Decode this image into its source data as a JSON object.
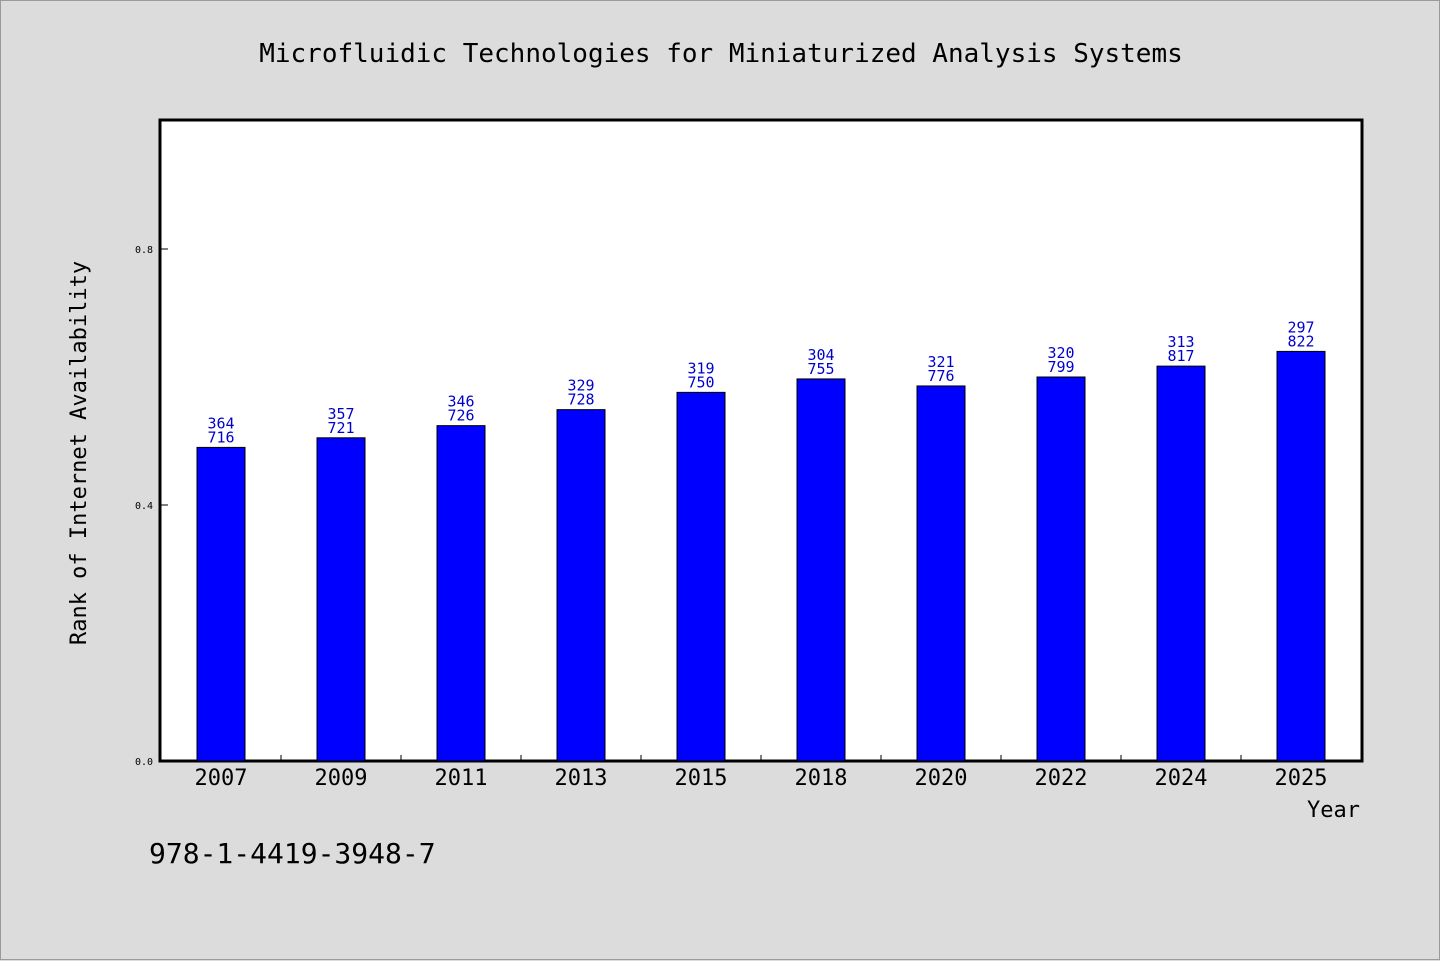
{
  "chart_data": {
    "type": "bar",
    "title": "Microfluidic Technologies for Miniaturized Analysis Systems",
    "xlabel": "Year",
    "ylabel": "Rank of Internet Availability",
    "categories": [
      "2007",
      "2009",
      "2011",
      "2013",
      "2015",
      "2018",
      "2020",
      "2022",
      "2024",
      "2025"
    ],
    "values": [
      0.49,
      0.505,
      0.524,
      0.549,
      0.576,
      0.597,
      0.586,
      0.6,
      0.617,
      0.64
    ],
    "data_labels": [
      [
        "364",
        "716"
      ],
      [
        "357",
        "721"
      ],
      [
        "346",
        "726"
      ],
      [
        "329",
        "728"
      ],
      [
        "319",
        "750"
      ],
      [
        "304",
        "755"
      ],
      [
        "321",
        "776"
      ],
      [
        "320",
        "799"
      ],
      [
        "313",
        "817"
      ],
      [
        "297",
        "822"
      ]
    ],
    "yticks": [
      "0.0",
      "0.4",
      "0.8"
    ],
    "ylim": [
      0,
      1.0
    ],
    "grid": false,
    "bar_color": "#0000ff",
    "label_color": "#0000cc"
  },
  "footer": {
    "isbn": "978-1-4419-3948-7"
  }
}
